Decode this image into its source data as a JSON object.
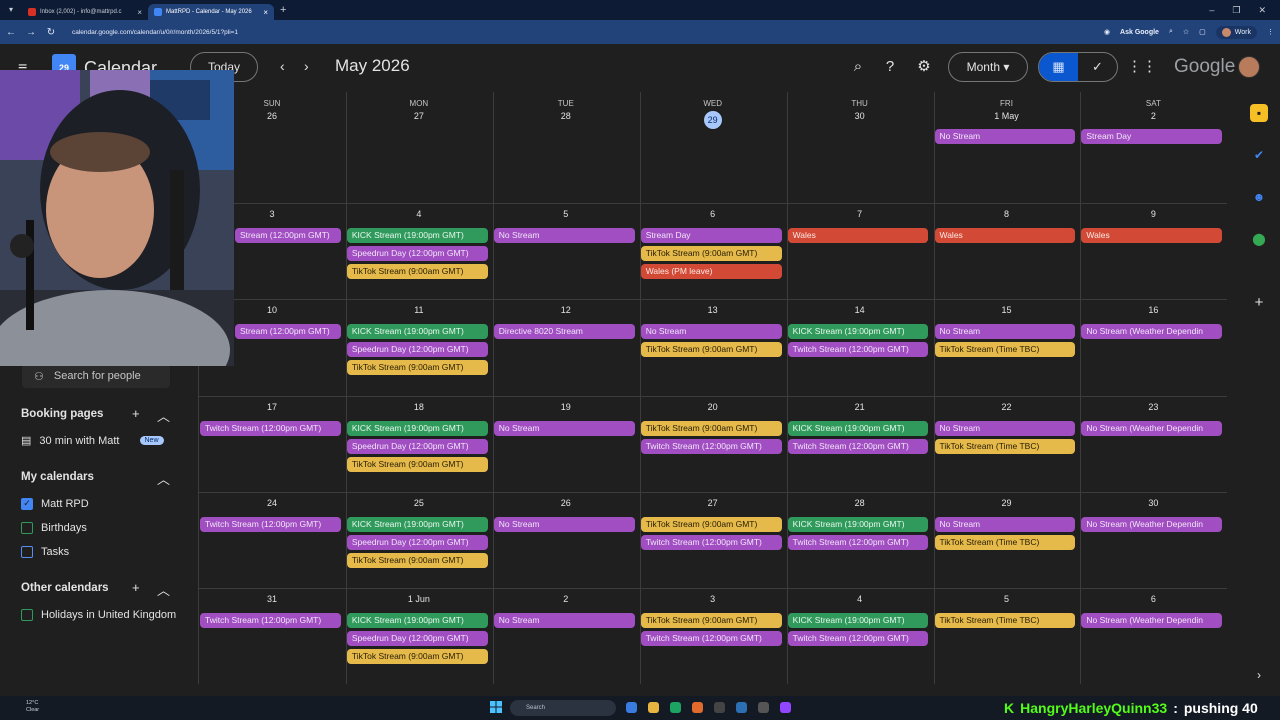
{
  "browser": {
    "tabs": [
      {
        "label": "Inbox (2,002) - info@mattrpd.c"
      },
      {
        "label": "MattRPD - Calendar - May 2026"
      }
    ],
    "url": "calendar.google.com/calendar/u/0/r/month/2026/5/1?pli=1",
    "ask_google": "Ask Google",
    "profile_label": "Work"
  },
  "header": {
    "app_name": "Calendar",
    "logo_day": "29",
    "today_label": "Today",
    "month_title": "May 2026",
    "view_label": "Month",
    "google_word": "Google"
  },
  "sidebar": {
    "search_people": "Search for people",
    "booking_pages_title": "Booking pages",
    "booking_item": "30 min with Matt",
    "booking_badge": "New",
    "my_calendars_title": "My calendars",
    "my_calendars": [
      {
        "label": "Matt RPD",
        "color": "#4285f4",
        "checked": true
      },
      {
        "label": "Birthdays",
        "color": "#2f9a5b",
        "checked": false
      },
      {
        "label": "Tasks",
        "color": "#5b8def",
        "checked": false
      }
    ],
    "other_calendars_title": "Other calendars",
    "other_calendars": [
      {
        "label": "Holidays in United Kingdom",
        "color": "#2f9a5b",
        "checked": false
      }
    ]
  },
  "weekdays": [
    "SUN",
    "MON",
    "TUE",
    "WED",
    "THU",
    "FRI",
    "SAT"
  ],
  "weeks": [
    {
      "days": [
        "26",
        "27",
        "28",
        "29",
        "30",
        "1 May",
        "2"
      ]
    },
    {
      "days": [
        "3",
        "4",
        "5",
        "6",
        "7",
        "8",
        "9"
      ]
    },
    {
      "days": [
        "10",
        "11",
        "12",
        "13",
        "14",
        "15",
        "16"
      ]
    },
    {
      "days": [
        "17",
        "18",
        "19",
        "20",
        "21",
        "22",
        "23"
      ]
    },
    {
      "days": [
        "24",
        "25",
        "26",
        "27",
        "28",
        "29",
        "30"
      ]
    },
    {
      "days": [
        "31",
        "1 Jun",
        "2",
        "3",
        "4",
        "5",
        "6"
      ]
    }
  ],
  "today_label_day": "29",
  "events": [
    {
      "w": 0,
      "d": 5,
      "slot": 0,
      "label": "No Stream",
      "color": "purple"
    },
    {
      "w": 0,
      "d": 6,
      "slot": 0,
      "label": "Stream Day",
      "color": "purple"
    },
    {
      "w": 1,
      "d": 0,
      "slot": 0,
      "label": "Stream (12:00pm GMT)",
      "color": "purple"
    },
    {
      "w": 1,
      "d": 1,
      "slot": 0,
      "label": "KICK Stream (19:00pm GMT)",
      "color": "green"
    },
    {
      "w": 1,
      "d": 1,
      "slot": 1,
      "label": "Speedrun Day (12:00pm GMT)",
      "color": "purple"
    },
    {
      "w": 1,
      "d": 1,
      "slot": 2,
      "label": "TikTok Stream (9:00am GMT)",
      "color": "yellow"
    },
    {
      "w": 1,
      "d": 2,
      "slot": 0,
      "label": "No Stream",
      "color": "purple"
    },
    {
      "w": 1,
      "d": 3,
      "slot": 0,
      "label": "Stream Day",
      "color": "purple"
    },
    {
      "w": 1,
      "d": 3,
      "slot": 1,
      "label": "TikTok Stream (9:00am GMT)",
      "color": "yellow"
    },
    {
      "w": 1,
      "d": 3,
      "slot": 2,
      "label": "Wales (PM leave)",
      "color": "red"
    },
    {
      "w": 1,
      "d": 4,
      "slot": 0,
      "label": "Wales",
      "color": "red"
    },
    {
      "w": 1,
      "d": 5,
      "slot": 0,
      "label": "Wales",
      "color": "red"
    },
    {
      "w": 1,
      "d": 6,
      "slot": 0,
      "label": "Wales",
      "color": "red"
    },
    {
      "w": 2,
      "d": 0,
      "slot": 0,
      "label": "Stream (12:00pm GMT)",
      "color": "purple"
    },
    {
      "w": 2,
      "d": 1,
      "slot": 0,
      "label": "KICK Stream (19:00pm GMT)",
      "color": "green"
    },
    {
      "w": 2,
      "d": 1,
      "slot": 1,
      "label": "Speedrun Day (12:00pm GMT)",
      "color": "purple"
    },
    {
      "w": 2,
      "d": 1,
      "slot": 2,
      "label": "TikTok Stream (9:00am GMT)",
      "color": "yellow"
    },
    {
      "w": 2,
      "d": 2,
      "slot": 0,
      "label": "Directive 8020 Stream",
      "color": "purple"
    },
    {
      "w": 2,
      "d": 3,
      "slot": 0,
      "label": "No Stream",
      "color": "purple"
    },
    {
      "w": 2,
      "d": 3,
      "slot": 1,
      "label": "TikTok Stream (9:00am GMT)",
      "color": "yellow"
    },
    {
      "w": 2,
      "d": 4,
      "slot": 0,
      "label": "KICK Stream (19:00pm GMT)",
      "color": "green"
    },
    {
      "w": 2,
      "d": 4,
      "slot": 1,
      "label": "Twitch Stream (12:00pm GMT)",
      "color": "purple"
    },
    {
      "w": 2,
      "d": 5,
      "slot": 0,
      "label": "No Stream",
      "color": "purple"
    },
    {
      "w": 2,
      "d": 5,
      "slot": 1,
      "label": "TikTok Stream (Time TBC)",
      "color": "yellow"
    },
    {
      "w": 2,
      "d": 6,
      "slot": 0,
      "label": "No Stream (Weather Dependin",
      "color": "purple"
    },
    {
      "w": 3,
      "d": 0,
      "slot": 0,
      "label": "Twitch Stream (12:00pm GMT)",
      "color": "purple"
    },
    {
      "w": 3,
      "d": 1,
      "slot": 0,
      "label": "KICK Stream (19:00pm GMT)",
      "color": "green"
    },
    {
      "w": 3,
      "d": 1,
      "slot": 1,
      "label": "Speedrun Day (12:00pm GMT)",
      "color": "purple"
    },
    {
      "w": 3,
      "d": 1,
      "slot": 2,
      "label": "TikTok Stream (9:00am GMT)",
      "color": "yellow"
    },
    {
      "w": 3,
      "d": 2,
      "slot": 0,
      "label": "No Stream",
      "color": "purple"
    },
    {
      "w": 3,
      "d": 3,
      "slot": 0,
      "label": "TikTok Stream (9:00am GMT)",
      "color": "yellow"
    },
    {
      "w": 3,
      "d": 3,
      "slot": 1,
      "label": "Twitch Stream (12:00pm GMT)",
      "color": "purple"
    },
    {
      "w": 3,
      "d": 4,
      "slot": 0,
      "label": "KICK Stream (19:00pm GMT)",
      "color": "green"
    },
    {
      "w": 3,
      "d": 4,
      "slot": 1,
      "label": "Twitch Stream (12:00pm GMT)",
      "color": "purple"
    },
    {
      "w": 3,
      "d": 5,
      "slot": 0,
      "label": "No Stream",
      "color": "purple"
    },
    {
      "w": 3,
      "d": 5,
      "slot": 1,
      "label": "TikTok Stream (Time TBC)",
      "color": "yellow"
    },
    {
      "w": 3,
      "d": 6,
      "slot": 0,
      "label": "No Stream (Weather Dependin",
      "color": "purple"
    },
    {
      "w": 4,
      "d": 0,
      "slot": 0,
      "label": "Twitch Stream (12:00pm GMT)",
      "color": "purple"
    },
    {
      "w": 4,
      "d": 1,
      "slot": 0,
      "label": "KICK Stream (19:00pm GMT)",
      "color": "green"
    },
    {
      "w": 4,
      "d": 1,
      "slot": 1,
      "label": "Speedrun Day (12:00pm GMT)",
      "color": "purple"
    },
    {
      "w": 4,
      "d": 1,
      "slot": 2,
      "label": "TikTok Stream (9:00am GMT)",
      "color": "yellow"
    },
    {
      "w": 4,
      "d": 2,
      "slot": 0,
      "label": "No Stream",
      "color": "purple"
    },
    {
      "w": 4,
      "d": 3,
      "slot": 0,
      "label": "TikTok Stream (9:00am GMT)",
      "color": "yellow"
    },
    {
      "w": 4,
      "d": 3,
      "slot": 1,
      "label": "Twitch Stream (12:00pm GMT)",
      "color": "purple"
    },
    {
      "w": 4,
      "d": 4,
      "slot": 0,
      "label": "KICK Stream (19:00pm GMT)",
      "color": "green"
    },
    {
      "w": 4,
      "d": 4,
      "slot": 1,
      "label": "Twitch Stream (12:00pm GMT)",
      "color": "purple"
    },
    {
      "w": 4,
      "d": 5,
      "slot": 0,
      "label": "No Stream",
      "color": "purple"
    },
    {
      "w": 4,
      "d": 5,
      "slot": 1,
      "label": "TikTok Stream (Time TBC)",
      "color": "yellow"
    },
    {
      "w": 4,
      "d": 6,
      "slot": 0,
      "label": "No Stream (Weather Dependin",
      "color": "purple"
    },
    {
      "w": 5,
      "d": 0,
      "slot": 0,
      "label": "Twitch Stream (12:00pm GMT)",
      "color": "purple"
    },
    {
      "w": 5,
      "d": 1,
      "slot": 0,
      "label": "KICK Stream (19:00pm GMT)",
      "color": "green"
    },
    {
      "w": 5,
      "d": 1,
      "slot": 1,
      "label": "Speedrun Day (12:00pm GMT)",
      "color": "purple"
    },
    {
      "w": 5,
      "d": 1,
      "slot": 2,
      "label": "TikTok Stream (9:00am GMT)",
      "color": "yellow"
    },
    {
      "w": 5,
      "d": 2,
      "slot": 0,
      "label": "No Stream",
      "color": "purple"
    },
    {
      "w": 5,
      "d": 3,
      "slot": 0,
      "label": "TikTok Stream (9:00am GMT)",
      "color": "yellow"
    },
    {
      "w": 5,
      "d": 3,
      "slot": 1,
      "label": "Twitch Stream (12:00pm GMT)",
      "color": "purple"
    },
    {
      "w": 5,
      "d": 4,
      "slot": 0,
      "label": "KICK Stream (19:00pm GMT)",
      "color": "green"
    },
    {
      "w": 5,
      "d": 4,
      "slot": 1,
      "label": "Twitch Stream (12:00pm GMT)",
      "color": "purple"
    },
    {
      "w": 5,
      "d": 5,
      "slot": 0,
      "label": "TikTok Stream (Time TBC)",
      "color": "yellow"
    },
    {
      "w": 5,
      "d": 6,
      "slot": 0,
      "label": "No Stream (Weather Dependin",
      "color": "purple"
    }
  ],
  "taskbar": {
    "weather_temp": "12°C",
    "weather_desc": "Clear",
    "search_label": "Search"
  },
  "ticker": {
    "user": "HangryHarleyQuinn33",
    "message": "pushing 40"
  }
}
